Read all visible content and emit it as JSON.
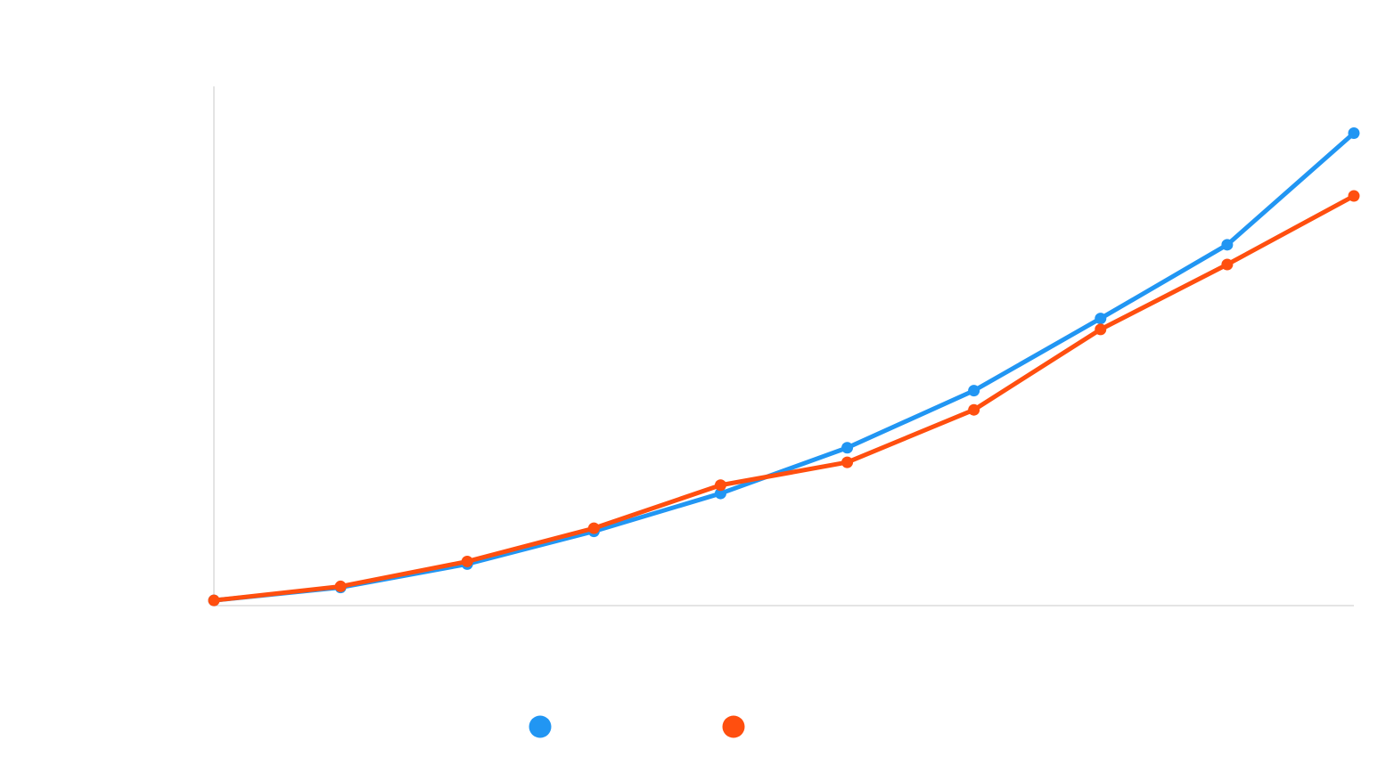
{
  "chart_data": {
    "type": "line",
    "x": [
      0,
      1,
      2,
      3,
      4,
      5,
      6,
      7,
      8,
      9
    ],
    "ylim": [
      0,
      100
    ],
    "grid": false,
    "legend_position": "bottom",
    "series": [
      {
        "color": "#2196f3",
        "values": [
          1,
          3.5,
          8,
          14.3,
          21.6,
          30.4,
          41.4,
          55.3,
          69.5,
          91
        ]
      },
      {
        "color": "#ff4f0f",
        "values": [
          1,
          3.7,
          8.5,
          14.9,
          23.2,
          27.6,
          37.7,
          53.2,
          65.7,
          78.9
        ]
      }
    ]
  }
}
